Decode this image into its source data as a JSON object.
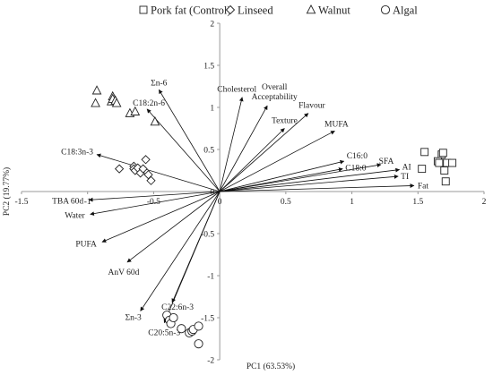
{
  "chart_data": {
    "type": "scatter",
    "subtype": "pca-biplot",
    "title": "",
    "xlabel": "PC1 (63.53%)",
    "ylabel": "PC2 (19.77%)",
    "xlim": [
      -1.5,
      2
    ],
    "ylim": [
      -2,
      2
    ],
    "x_ticks": [
      "-1.5",
      "-1",
      "-0.5",
      "0",
      "0.5",
      "1",
      "1.5",
      "2"
    ],
    "y_ticks": [
      "2",
      "1.5",
      "1",
      "0.5",
      "0",
      "-0.5",
      "-1",
      "-1.5",
      "-2"
    ],
    "x_tick_values": [
      -1.5,
      -1,
      -0.5,
      0,
      0.5,
      1,
      1.5,
      2
    ],
    "y_tick_values": [
      2,
      1.5,
      1,
      0.5,
      0,
      -0.5,
      -1,
      -1.5,
      -2
    ],
    "grid": false,
    "legend_position": "top",
    "legend": [
      {
        "name": "Pork fat (Control)",
        "marker": "square"
      },
      {
        "name": "Linseed",
        "marker": "diamond"
      },
      {
        "name": "Walnut",
        "marker": "triangle"
      },
      {
        "name": "Algal",
        "marker": "circle"
      }
    ],
    "series": [
      {
        "name": "Pork fat (Control)",
        "marker": "square",
        "points": [
          [
            1.55,
            0.47
          ],
          [
            1.53,
            0.27
          ],
          [
            1.68,
            0.44
          ],
          [
            1.69,
            0.46
          ],
          [
            1.65,
            0.36
          ],
          [
            1.66,
            0.34
          ],
          [
            1.72,
            0.34
          ],
          [
            1.76,
            0.34
          ],
          [
            1.7,
            0.25
          ],
          [
            1.71,
            0.12
          ]
        ]
      },
      {
        "name": "Linseed",
        "marker": "diamond",
        "points": [
          [
            -0.76,
            0.27
          ],
          [
            -0.65,
            0.3
          ],
          [
            -0.65,
            0.27
          ],
          [
            -0.64,
            0.25
          ],
          [
            -0.62,
            0.28
          ],
          [
            -0.6,
            0.22
          ],
          [
            -0.58,
            0.27
          ],
          [
            -0.56,
            0.38
          ],
          [
            -0.54,
            0.2
          ],
          [
            -0.52,
            0.13
          ]
        ]
      },
      {
        "name": "Walnut",
        "marker": "triangle",
        "points": [
          [
            -0.93,
            1.2
          ],
          [
            -0.94,
            1.05
          ],
          [
            -0.82,
            1.07
          ],
          [
            -0.81,
            1.13
          ],
          [
            -0.81,
            1.1
          ],
          [
            -0.79,
            1.08
          ],
          [
            -0.78,
            1.05
          ],
          [
            -0.68,
            0.93
          ],
          [
            -0.64,
            0.95
          ],
          [
            -0.49,
            0.83
          ]
        ]
      },
      {
        "name": "Algal",
        "marker": "circle",
        "points": [
          [
            -0.4,
            -1.47
          ],
          [
            -0.38,
            -1.53
          ],
          [
            -0.37,
            -1.57
          ],
          [
            -0.35,
            -1.5
          ],
          [
            -0.29,
            -1.63
          ],
          [
            -0.23,
            -1.68
          ],
          [
            -0.21,
            -1.66
          ],
          [
            -0.2,
            -1.64
          ],
          [
            -0.16,
            -1.6
          ],
          [
            -0.16,
            -1.81
          ]
        ]
      }
    ],
    "loadings": [
      {
        "label": "Cholesterol",
        "x": 0.17,
        "y": 1.12
      },
      {
        "label": "Overall Acceptability",
        "x": 0.36,
        "y": 1.02
      },
      {
        "label": "Texture",
        "x": 0.49,
        "y": 0.75
      },
      {
        "label": "Flavour",
        "x": 0.67,
        "y": 0.93
      },
      {
        "label": "MUFA",
        "x": 0.87,
        "y": 0.72
      },
      {
        "label": "C16:0",
        "x": 0.94,
        "y": 0.36
      },
      {
        "label": "C18:0",
        "x": 0.93,
        "y": 0.27
      },
      {
        "label": "SFA",
        "x": 1.22,
        "y": 0.32
      },
      {
        "label": "AI",
        "x": 1.36,
        "y": 0.26
      },
      {
        "label": "TI",
        "x": 1.35,
        "y": 0.18
      },
      {
        "label": "Fat",
        "x": 1.47,
        "y": 0.07
      },
      {
        "label": "Σn-6",
        "x": -0.46,
        "y": 1.21
      },
      {
        "label": "C18:2n-6",
        "x": -0.55,
        "y": 0.98
      },
      {
        "label": "C18:3n-3",
        "x": -0.93,
        "y": 0.44
      },
      {
        "label": "TBA 60d",
        "x": -0.99,
        "y": -0.1
      },
      {
        "label": "Water",
        "x": -0.98,
        "y": -0.27
      },
      {
        "label": "PUFA",
        "x": -0.89,
        "y": -0.6
      },
      {
        "label": "AnV 60d",
        "x": -0.7,
        "y": -0.84
      },
      {
        "label": "Σn-3",
        "x": -0.6,
        "y": -1.42
      },
      {
        "label": "C22:6n-3",
        "x": -0.36,
        "y": -1.32
      },
      {
        "label": "C20:5n-3",
        "x": -0.42,
        "y": -1.56
      }
    ]
  }
}
